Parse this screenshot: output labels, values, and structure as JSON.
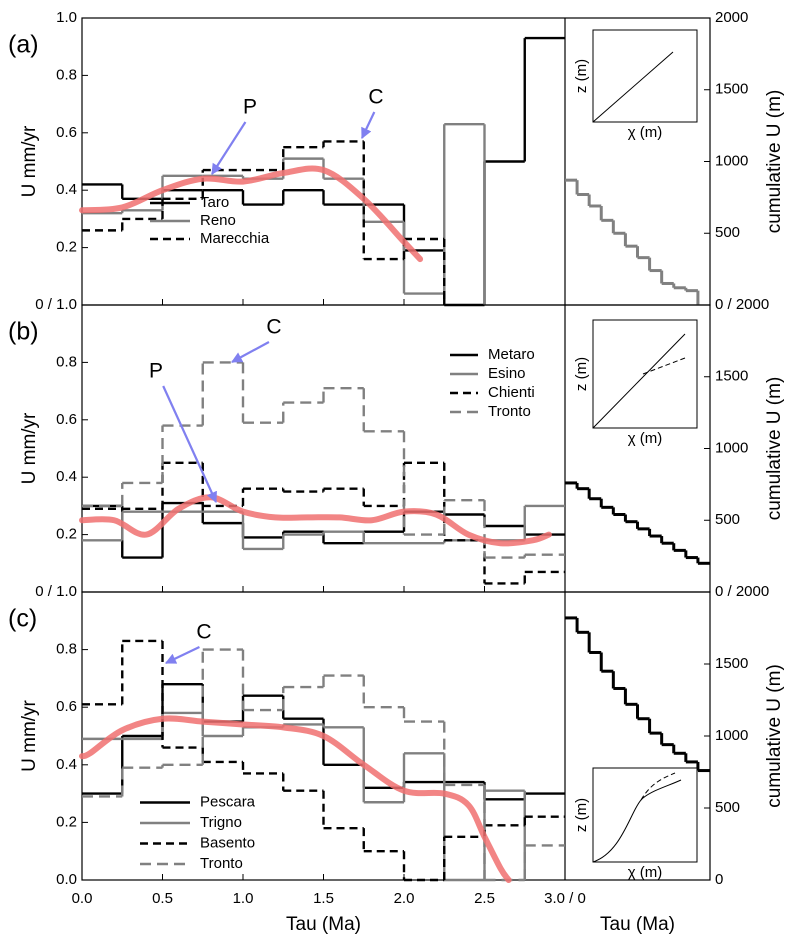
{
  "chart_data": [
    {
      "type": "step",
      "panel": "(a)",
      "ylabel": "U mm/yr",
      "y2label": "cumulative U (m)",
      "xlim": [
        0,
        3
      ],
      "ylim": [
        0,
        1
      ],
      "y2lim": [
        0,
        2000
      ],
      "yticks": [
        {
          "value": 0,
          "label": "0 / 1.0"
        },
        0.2,
        0.4,
        0.6,
        0.8,
        {
          "value": 1,
          "label": "1.0"
        }
      ],
      "y2ticks": [
        {
          "value": 0,
          "label": "0 / 2000"
        },
        500,
        1000,
        1500,
        2000
      ],
      "legend": "lower left",
      "series": [
        {
          "name": "Taro",
          "color": "#000000",
          "dash": false,
          "bins": [
            0,
            0.25,
            0.5,
            0.75,
            1,
            1.25,
            1.5,
            1.75,
            2,
            2.25,
            2.5,
            2.75,
            3
          ],
          "values": [
            0.42,
            0.37,
            0.4,
            0.4,
            0.35,
            0.4,
            0.35,
            0.35,
            0.19,
            0,
            0.5,
            0.93
          ]
        },
        {
          "name": "Reno",
          "color": "#808080",
          "dash": false,
          "bins": [
            0,
            0.25,
            0.5,
            0.75,
            1,
            1.25,
            1.5,
            1.75,
            2,
            2.25,
            2.5
          ],
          "values": [
            0.32,
            0.33,
            0.45,
            0.45,
            0.44,
            0.51,
            0.44,
            0.29,
            0.04,
            0.63
          ]
        },
        {
          "name": "Marecchia",
          "color": "#000000",
          "dash": true,
          "bins": [
            0,
            0.25,
            0.5,
            0.75,
            1,
            1.25,
            1.5,
            1.75,
            2,
            2.25
          ],
          "values": [
            0.26,
            0.3,
            0.37,
            0.47,
            0.47,
            0.55,
            0.57,
            0.16,
            0.23
          ]
        }
      ],
      "trend": {
        "color": "#f07070",
        "x": [
          0,
          0.25,
          0.5,
          0.75,
          1.0,
          1.25,
          1.5,
          1.75,
          2.0,
          2.1
        ],
        "values": [
          0.33,
          0.34,
          0.4,
          0.44,
          0.43,
          0.46,
          0.47,
          0.37,
          0.22,
          0.16
        ]
      },
      "cumulative": {
        "axis": "y2",
        "color": "#808080",
        "xlim": [
          0,
          3
        ],
        "bins": [
          0,
          0.25,
          0.5,
          0.75,
          1,
          1.25,
          1.5,
          1.75,
          2,
          2.25,
          2.5,
          2.75
        ],
        "values": [
          870,
          770,
          690,
          590,
          500,
          410,
          330,
          240,
          150,
          120,
          100
        ]
      },
      "annotations": [
        {
          "text": "P"
        },
        {
          "text": "C"
        }
      ],
      "inset": {
        "ylabel": "z (m)",
        "xlabel": "χ  (m)"
      }
    },
    {
      "type": "step",
      "panel": "(b)",
      "ylabel": "U mm/yr",
      "y2label": "cumulative U (m)",
      "xlim": [
        0,
        3
      ],
      "ylim": [
        0,
        1
      ],
      "y2lim": [
        0,
        2000
      ],
      "yticks": [
        {
          "value": 0,
          "label": "0 / 1.0"
        },
        0.2,
        0.4,
        0.6,
        0.8
      ],
      "y2ticks": [
        {
          "value": 0,
          "label": "0 / 2000"
        },
        500,
        1000,
        1500
      ],
      "legend": "upper right",
      "series": [
        {
          "name": "Metaro",
          "color": "#000000",
          "dash": false,
          "bins": [
            0,
            0.25,
            0.5,
            0.75,
            1,
            1.25,
            1.5,
            1.75,
            2,
            2.25,
            2.5,
            2.75,
            3
          ],
          "values": [
            0.3,
            0.12,
            0.31,
            0.24,
            0.19,
            0.21,
            0.17,
            0.21,
            0.28,
            0.27,
            0.23,
            0.2
          ]
        },
        {
          "name": "Esino",
          "color": "#808080",
          "dash": false,
          "bins": [
            0,
            0.25,
            0.5,
            0.75,
            1,
            1.25,
            1.5,
            1.75,
            2,
            2.25,
            2.5,
            2.75,
            3
          ],
          "values": [
            0.18,
            0.28,
            0.28,
            0.28,
            0.15,
            0.2,
            0.21,
            0.17,
            0.17,
            0.18,
            0.18,
            0.3
          ]
        },
        {
          "name": "Chienti",
          "color": "#000000",
          "dash": true,
          "bins": [
            0,
            0.25,
            0.5,
            0.75,
            1,
            1.25,
            1.5,
            1.75,
            2,
            2.25,
            2.5,
            2.75,
            3
          ],
          "values": [
            0.29,
            0.29,
            0.45,
            0.3,
            0.36,
            0.35,
            0.36,
            0.3,
            0.45,
            0.18,
            0.03,
            0.07
          ]
        },
        {
          "name": "Tronto",
          "color": "#808080",
          "dash": true,
          "bins": [
            0,
            0.25,
            0.5,
            0.75,
            1,
            1.25,
            1.5,
            1.75,
            2,
            2.25,
            2.5,
            2.75,
            3
          ],
          "values": [
            0.3,
            0.38,
            0.58,
            0.8,
            0.59,
            0.66,
            0.71,
            0.56,
            0.2,
            0.32,
            0.12,
            0.13
          ]
        }
      ],
      "trend": {
        "color": "#f07070",
        "x": [
          0,
          0.2,
          0.4,
          0.6,
          0.8,
          1.0,
          1.2,
          1.4,
          1.6,
          1.8,
          2.0,
          2.2,
          2.4,
          2.6,
          2.8,
          2.9
        ],
        "values": [
          0.25,
          0.25,
          0.2,
          0.29,
          0.33,
          0.28,
          0.26,
          0.26,
          0.26,
          0.25,
          0.28,
          0.27,
          0.2,
          0.17,
          0.18,
          0.2
        ]
      },
      "cumulative": {
        "axis": "y2",
        "color": "#000000",
        "xlim": [
          0,
          3
        ],
        "bins": [
          0,
          0.25,
          0.5,
          0.75,
          1,
          1.25,
          1.5,
          1.75,
          2,
          2.25,
          2.5,
          2.75,
          3
        ],
        "values": [
          760,
          720,
          650,
          590,
          540,
          490,
          440,
          390,
          340,
          290,
          240,
          200
        ]
      },
      "annotations": [
        {
          "text": "C"
        },
        {
          "text": "P"
        }
      ],
      "inset": {
        "ylabel": "z (m)",
        "xlabel": "χ  (m)"
      }
    },
    {
      "type": "step",
      "panel": "(c)",
      "ylabel": "U mm/yr",
      "y2label": "cumulative U (m)",
      "xlabel": "Tau (Ma)",
      "x2label": "Tau (Ma)",
      "xlim": [
        0,
        3
      ],
      "ylim": [
        0,
        1
      ],
      "y2lim": [
        0,
        2000
      ],
      "xticks": [
        {
          "value": 0,
          "label": "0.0"
        },
        0.5,
        {
          "value": 1,
          "label": "1.0"
        },
        1.5,
        {
          "value": 2,
          "label": "2.0"
        },
        2.5,
        {
          "value": 3,
          "label": "3.0 / 0"
        }
      ],
      "yticks": [
        {
          "value": 0,
          "label": "0.0"
        },
        0.2,
        0.4,
        0.6,
        0.8
      ],
      "y2ticks": [
        0,
        500,
        1000,
        1500
      ],
      "legend": "lower left",
      "series": [
        {
          "name": "Pescara",
          "color": "#000000",
          "dash": false,
          "bins": [
            0,
            0.25,
            0.5,
            0.75,
            1,
            1.25,
            1.5,
            1.75,
            2,
            2.25,
            2.5,
            2.75,
            3
          ],
          "values": [
            0.3,
            0.5,
            0.68,
            0.55,
            0.64,
            0.56,
            0.4,
            0.32,
            0.34,
            0.34,
            0.28,
            0.3
          ]
        },
        {
          "name": "Trigno",
          "color": "#808080",
          "dash": false,
          "bins": [
            0,
            0.25,
            0.5,
            0.75,
            1,
            1.25,
            1.5,
            1.75,
            2,
            2.25,
            2.5,
            2.75
          ],
          "values": [
            0.49,
            0.49,
            0.58,
            0.5,
            0.53,
            0.54,
            0.53,
            0.27,
            0.44,
            0,
            0.31
          ]
        },
        {
          "name": "Basento",
          "color": "#000000",
          "dash": true,
          "bins": [
            0,
            0.25,
            0.5,
            0.75,
            1,
            1.25,
            1.5,
            1.75,
            2,
            2.25,
            2.5,
            2.75,
            3
          ],
          "values": [
            0.61,
            0.83,
            0.46,
            0.41,
            0.37,
            0.31,
            0.18,
            0.1,
            0,
            0.15,
            0.19,
            0.22
          ]
        },
        {
          "name": "Tronto",
          "color": "#808080",
          "dash": true,
          "bins": [
            0,
            0.25,
            0.5,
            0.75,
            1,
            1.25,
            1.5,
            1.75,
            2,
            2.25,
            2.5,
            2.75,
            3
          ],
          "values": [
            0.29,
            0.39,
            0.4,
            0.8,
            0.59,
            0.67,
            0.71,
            0.6,
            0.55,
            0.33,
            0,
            0.12
          ]
        }
      ],
      "trend": {
        "color": "#f07070",
        "x": [
          0,
          0.05,
          0.25,
          0.5,
          0.75,
          1.0,
          1.25,
          1.5,
          1.75,
          2.0,
          2.25,
          2.4,
          2.5,
          2.6,
          2.65
        ],
        "values": [
          0.43,
          0.44,
          0.52,
          0.56,
          0.55,
          0.54,
          0.53,
          0.5,
          0.4,
          0.31,
          0.3,
          0.26,
          0.15,
          0.04,
          0
        ]
      },
      "cumulative": {
        "axis": "y2",
        "color": "#000000",
        "xlim": [
          0,
          3
        ],
        "bins": [
          0,
          0.25,
          0.5,
          0.75,
          1,
          1.25,
          1.5,
          1.75,
          2,
          2.25,
          2.5,
          2.75,
          3
        ],
        "values": [
          1820,
          1720,
          1580,
          1450,
          1330,
          1220,
          1120,
          1020,
          940,
          880,
          820,
          760
        ]
      },
      "annotations": [
        {
          "text": "C"
        }
      ],
      "inset": {
        "ylabel": "z (m)",
        "xlabel": "χ  (m)"
      }
    }
  ]
}
